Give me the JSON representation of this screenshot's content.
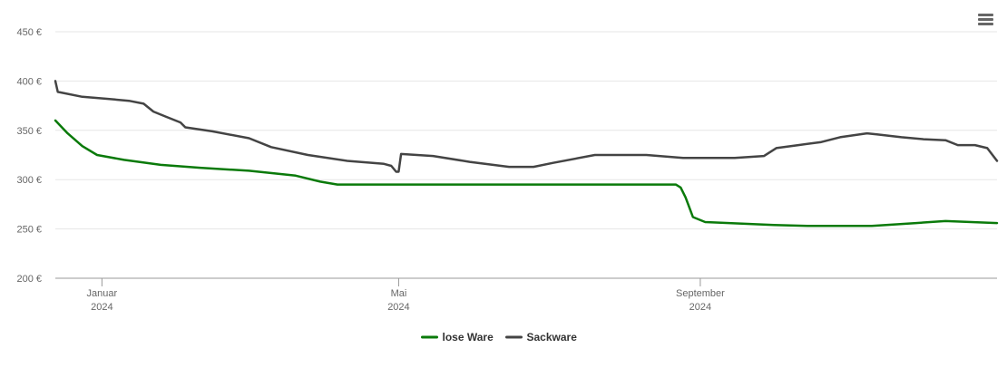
{
  "chart_data": {
    "type": "line",
    "title": "",
    "xlabel": "",
    "ylabel": "",
    "x_axis": {
      "start": "2023-12-13",
      "end": "2024-12-31",
      "ticks": [
        {
          "date": "2024-01-01",
          "line1": "Januar",
          "line2": "2024"
        },
        {
          "date": "2024-05-01",
          "line1": "Mai",
          "line2": "2024"
        },
        {
          "date": "2024-09-01",
          "line1": "September",
          "line2": "2024"
        }
      ]
    },
    "y_axis": {
      "ylim": [
        200,
        450
      ],
      "ticks": [
        200,
        250,
        300,
        350,
        400,
        450
      ],
      "tick_labels": [
        "200 €",
        "250 €",
        "300 €",
        "350 €",
        "400 €",
        "450 €"
      ]
    },
    "grid": "horizontal",
    "legend_position": "bottom-center",
    "series": [
      {
        "name": "lose Ware",
        "color": "#0a7a0a",
        "points": [
          [
            "2023-12-13",
            360
          ],
          [
            "2023-12-18",
            347
          ],
          [
            "2023-12-24",
            334
          ],
          [
            "2023-12-30",
            325
          ],
          [
            "2024-01-10",
            320
          ],
          [
            "2024-01-25",
            315
          ],
          [
            "2024-02-10",
            312
          ],
          [
            "2024-03-01",
            309
          ],
          [
            "2024-03-20",
            304
          ],
          [
            "2024-03-30",
            298
          ],
          [
            "2024-04-06",
            295
          ],
          [
            "2024-05-01",
            295
          ],
          [
            "2024-06-01",
            295
          ],
          [
            "2024-07-01",
            295
          ],
          [
            "2024-08-22",
            295
          ],
          [
            "2024-08-24",
            292
          ],
          [
            "2024-08-26",
            282
          ],
          [
            "2024-08-29",
            262
          ],
          [
            "2024-09-03",
            257
          ],
          [
            "2024-10-01",
            254
          ],
          [
            "2024-10-15",
            253
          ],
          [
            "2024-11-10",
            253
          ],
          [
            "2024-11-28",
            256
          ],
          [
            "2024-12-10",
            258
          ],
          [
            "2024-12-31",
            256
          ]
        ]
      },
      {
        "name": "Sackware",
        "color": "#444444",
        "points": [
          [
            "2023-12-13",
            400
          ],
          [
            "2023-12-14",
            389
          ],
          [
            "2023-12-24",
            384
          ],
          [
            "2024-01-03",
            382
          ],
          [
            "2024-01-12",
            380
          ],
          [
            "2024-01-18",
            377
          ],
          [
            "2024-01-22",
            369
          ],
          [
            "2024-01-27",
            364
          ],
          [
            "2024-02-02",
            358
          ],
          [
            "2024-02-04",
            353
          ],
          [
            "2024-02-15",
            349
          ],
          [
            "2024-03-01",
            342
          ],
          [
            "2024-03-10",
            333
          ],
          [
            "2024-03-25",
            325
          ],
          [
            "2024-04-10",
            319
          ],
          [
            "2024-04-25",
            316
          ],
          [
            "2024-04-28",
            314
          ],
          [
            "2024-04-30",
            308
          ],
          [
            "2024-05-01",
            308
          ],
          [
            "2024-05-02",
            326
          ],
          [
            "2024-05-15",
            324
          ],
          [
            "2024-05-30",
            318
          ],
          [
            "2024-06-15",
            313
          ],
          [
            "2024-06-25",
            313
          ],
          [
            "2024-07-03",
            317
          ],
          [
            "2024-07-20",
            325
          ],
          [
            "2024-08-10",
            325
          ],
          [
            "2024-08-25",
            322
          ],
          [
            "2024-09-15",
            322
          ],
          [
            "2024-09-27",
            324
          ],
          [
            "2024-10-02",
            332
          ],
          [
            "2024-10-11",
            335
          ],
          [
            "2024-10-20",
            338
          ],
          [
            "2024-10-28",
            343
          ],
          [
            "2024-11-08",
            347
          ],
          [
            "2024-11-12",
            346
          ],
          [
            "2024-11-22",
            343
          ],
          [
            "2024-12-01",
            341
          ],
          [
            "2024-12-10",
            340
          ],
          [
            "2024-12-15",
            335
          ],
          [
            "2024-12-22",
            335
          ],
          [
            "2024-12-27",
            332
          ],
          [
            "2024-12-31",
            319
          ]
        ]
      }
    ]
  },
  "ui": {
    "menu_icon": "hamburger-menu-icon"
  }
}
